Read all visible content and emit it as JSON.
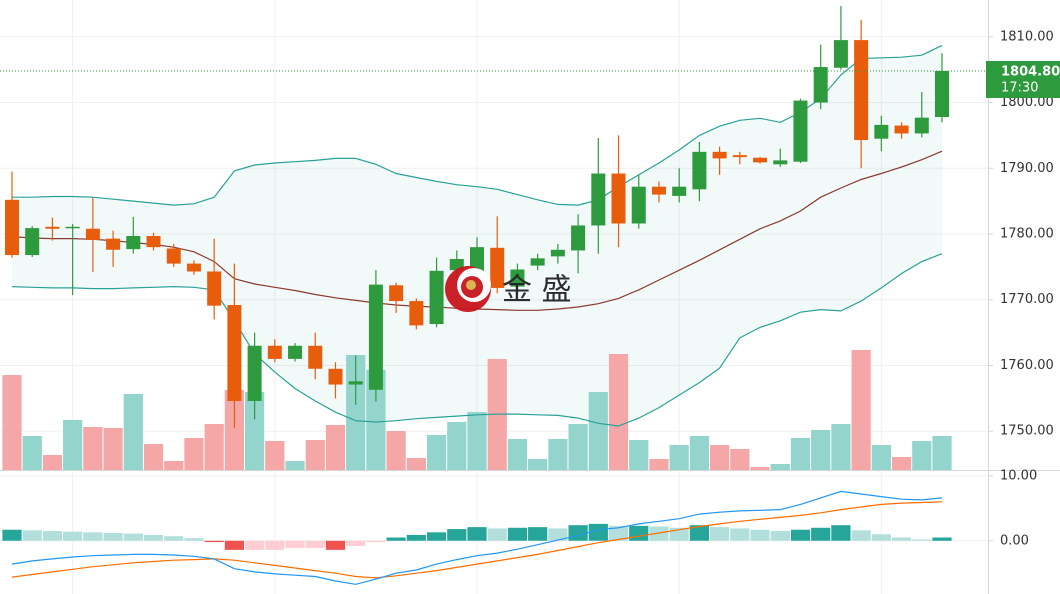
{
  "chart_data": [
    {
      "type": "candlestick",
      "open": [
        1785.2,
        1776.8,
        1781.1,
        1780.9,
        1780.8,
        1779.3,
        1777.7,
        1779.7,
        1777.8,
        1775.5,
        1774.3,
        1769.2,
        1754.6,
        1763.0,
        1761.0,
        1763.0,
        1759.5,
        1757.1,
        1756.3,
        1772.2,
        1769.8,
        1766.3,
        1774.5,
        1774.3,
        1777.9,
        1772.0,
        1775.2,
        1776.6,
        1777.5,
        1781.3,
        1789.2,
        1781.6,
        1787.2,
        1785.8,
        1786.8,
        1792.5,
        1792.0,
        1791.6,
        1790.6,
        1791.0,
        1800.0,
        1805.3,
        1809.5,
        1794.5,
        1796.5,
        1795.3,
        1797.8
      ],
      "high": [
        1789.5,
        1781.2,
        1782.5,
        1781.5,
        1785.6,
        1780.5,
        1782.6,
        1780.2,
        1778.5,
        1776.0,
        1779.3,
        1775.5,
        1765.0,
        1764.0,
        1763.4,
        1765.0,
        1760.5,
        1761.5,
        1774.5,
        1772.6,
        1770.2,
        1776.4,
        1777.5,
        1779.5,
        1782.7,
        1775.5,
        1777.0,
        1778.5,
        1783.0,
        1794.6,
        1795.0,
        1789.0,
        1788.0,
        1790.0,
        1794.0,
        1793.3,
        1792.5,
        1791.7,
        1793.0,
        1800.6,
        1808.8,
        1814.7,
        1812.6,
        1798.0,
        1797.0,
        1801.6,
        1807.5
      ],
      "low": [
        1776.4,
        1776.5,
        1779.0,
        1770.7,
        1774.2,
        1775.0,
        1777.0,
        1777.5,
        1775.0,
        1773.8,
        1767.0,
        1750.5,
        1751.8,
        1760.5,
        1760.6,
        1757.9,
        1755.0,
        1754.0,
        1754.5,
        1768.0,
        1765.5,
        1765.8,
        1772.0,
        1773.0,
        1771.0,
        1771.0,
        1774.5,
        1775.5,
        1774.0,
        1777.0,
        1778.0,
        1780.8,
        1784.8,
        1784.8,
        1785.0,
        1789.0,
        1790.6,
        1790.7,
        1790.2,
        1790.8,
        1799.0,
        1805.0,
        1790.0,
        1792.6,
        1794.5,
        1794.7,
        1797.0
      ],
      "close": [
        1776.8,
        1780.9,
        1780.8,
        1781.1,
        1779.1,
        1777.6,
        1779.7,
        1778.0,
        1775.5,
        1774.3,
        1769.1,
        1754.6,
        1763.0,
        1761.0,
        1763.0,
        1759.5,
        1757.1,
        1757.6,
        1772.3,
        1769.8,
        1766.1,
        1774.4,
        1776.2,
        1778.0,
        1771.8,
        1774.6,
        1776.3,
        1777.6,
        1781.3,
        1789.2,
        1781.6,
        1787.2,
        1786.0,
        1787.2,
        1792.5,
        1791.5,
        1791.7,
        1790.9,
        1791.2,
        1800.3,
        1805.4,
        1809.5,
        1794.3,
        1796.6,
        1795.3,
        1797.7,
        1804.8
      ],
      "up_color": "#2e9a3e",
      "down_color": "#e85d0c",
      "volume": [
        95,
        34,
        15,
        50,
        43,
        42,
        76,
        26,
        9,
        32,
        46,
        80,
        78,
        29,
        9,
        30,
        45,
        115,
        100,
        39,
        12,
        35,
        48,
        58,
        111,
        31,
        11,
        31,
        46,
        78,
        116,
        30,
        11,
        25,
        34,
        25,
        21,
        3,
        6,
        32,
        40,
        46,
        120,
        25,
        13,
        29,
        34
      ],
      "volume_lim": [
        0,
        130
      ],
      "volume_up_color": "#93d5cd",
      "volume_down_color": "#f5a7a7",
      "bands": {
        "upper": [
          1785.6,
          1785.6,
          1785.7,
          1785.7,
          1785.6,
          1785.3,
          1785.0,
          1784.7,
          1784.4,
          1784.6,
          1785.6,
          1789.6,
          1790.5,
          1790.8,
          1791.0,
          1791.2,
          1791.5,
          1791.5,
          1790.6,
          1789.2,
          1788.6,
          1788.0,
          1787.5,
          1787.2,
          1786.8,
          1786.0,
          1785.2,
          1784.5,
          1784.4,
          1785.2,
          1787.2,
          1789.0,
          1790.8,
          1792.8,
          1795.0,
          1796.4,
          1797.3,
          1797.6,
          1797.0,
          1798.5,
          1800.6,
          1804.2,
          1806.7,
          1806.8,
          1806.9,
          1807.2,
          1808.7
        ],
        "middle": [
          1779.6,
          1779.4,
          1779.3,
          1779.3,
          1779.2,
          1779.0,
          1778.7,
          1778.4,
          1778.0,
          1777.3,
          1775.8,
          1773.2,
          1772.4,
          1771.9,
          1771.4,
          1770.8,
          1770.3,
          1769.9,
          1769.5,
          1769.2,
          1769.0,
          1768.9,
          1768.7,
          1768.6,
          1768.5,
          1768.4,
          1768.4,
          1768.6,
          1768.9,
          1769.4,
          1770.2,
          1771.5,
          1773.0,
          1774.5,
          1776.0,
          1777.6,
          1779.2,
          1780.8,
          1782.0,
          1783.5,
          1785.6,
          1787.0,
          1788.3,
          1789.2,
          1790.2,
          1791.3,
          1792.6
        ],
        "lower": [
          1772.0,
          1771.9,
          1771.8,
          1771.8,
          1771.7,
          1771.7,
          1771.8,
          1771.9,
          1772.0,
          1771.9,
          1771.5,
          1766.8,
          1761.8,
          1759.0,
          1756.5,
          1754.6,
          1752.9,
          1751.6,
          1751.4,
          1751.6,
          1751.9,
          1752.1,
          1752.3,
          1752.5,
          1752.6,
          1752.6,
          1752.5,
          1752.4,
          1752.0,
          1751.2,
          1750.8,
          1752.0,
          1753.6,
          1755.5,
          1757.4,
          1759.6,
          1764.2,
          1765.8,
          1766.8,
          1768.1,
          1768.5,
          1768.3,
          1769.8,
          1771.8,
          1774.0,
          1775.8,
          1777.0
        ],
        "band_color": "#2aa198",
        "middle_color": "#8b3a30",
        "fill": "rgba(42,161,152,0.06)"
      },
      "ylim": [
        1744.1,
        1815.6
      ],
      "yticks": [
        {
          "value": 1810,
          "label": "1810.00"
        },
        {
          "value": 1800,
          "label": "1800.00"
        },
        {
          "value": 1790,
          "label": "1790.00"
        },
        {
          "value": 1780,
          "label": "1780.00"
        },
        {
          "value": 1770,
          "label": "1770.00"
        },
        {
          "value": 1760,
          "label": "1760.00"
        },
        {
          "value": 1750,
          "label": "1750.00"
        }
      ],
      "grid": true,
      "last_price": {
        "value": 1804.8,
        "label": "1804.80"
      },
      "countdown": "17:30",
      "last_price_color": "#2e9a3e",
      "watermark": "金 盛"
    },
    {
      "type": "macd",
      "macd": [
        -3.6,
        -3.1,
        -2.8,
        -2.5,
        -2.3,
        -2.2,
        -2.1,
        -2.1,
        -2.2,
        -2.4,
        -2.8,
        -4.3,
        -4.8,
        -5.1,
        -5.3,
        -5.5,
        -6.2,
        -6.7,
        -5.9,
        -5.0,
        -4.5,
        -3.6,
        -2.9,
        -2.3,
        -1.9,
        -1.3,
        -0.6,
        0.1,
        0.8,
        1.7,
        2.0,
        2.6,
        3.0,
        3.4,
        4.1,
        4.4,
        4.6,
        4.7,
        4.8,
        5.6,
        6.6,
        7.6,
        7.2,
        6.8,
        6.4,
        6.3,
        6.6
      ],
      "signal": [
        -5.6,
        -5.2,
        -4.8,
        -4.4,
        -4.0,
        -3.7,
        -3.4,
        -3.2,
        -3.0,
        -2.9,
        -2.8,
        -3.0,
        -3.4,
        -3.8,
        -4.2,
        -4.6,
        -5.0,
        -5.5,
        -5.7,
        -5.4,
        -5.0,
        -4.6,
        -4.1,
        -3.6,
        -3.1,
        -2.6,
        -2.1,
        -1.5,
        -0.9,
        -0.3,
        0.2,
        0.7,
        1.2,
        1.7,
        2.2,
        2.6,
        3.0,
        3.3,
        3.6,
        3.9,
        4.3,
        4.8,
        5.2,
        5.6,
        5.8,
        5.9,
        6.0
      ],
      "histogram": [
        1.7,
        1.6,
        1.5,
        1.4,
        1.3,
        1.2,
        1.1,
        0.9,
        0.7,
        0.4,
        -0.2,
        -1.4,
        -1.4,
        -1.4,
        -1.1,
        -1.1,
        -1.4,
        -0.8,
        -0.2,
        0.5,
        0.9,
        1.3,
        1.8,
        2.1,
        1.9,
        2.0,
        2.1,
        1.9,
        2.4,
        2.6,
        2.3,
        2.3,
        2.2,
        2.0,
        2.4,
        2.1,
        1.9,
        1.7,
        1.5,
        1.7,
        2.0,
        2.4,
        1.6,
        1.0,
        0.5,
        0.2,
        0.5
      ],
      "macd_color": "#2196f3",
      "signal_color": "#ff6d00",
      "hist_colors": {
        "up_rising": "#26a69a",
        "up_falling": "#b2dfdb",
        "down_falling": "#ef5350",
        "down_rising": "#ffcdd2"
      },
      "ylim": [
        -8.2,
        10.9
      ],
      "yticks": [
        {
          "value": 10,
          "label": "10.00"
        },
        {
          "value": 0,
          "label": "0.00"
        }
      ],
      "grid": true
    }
  ]
}
